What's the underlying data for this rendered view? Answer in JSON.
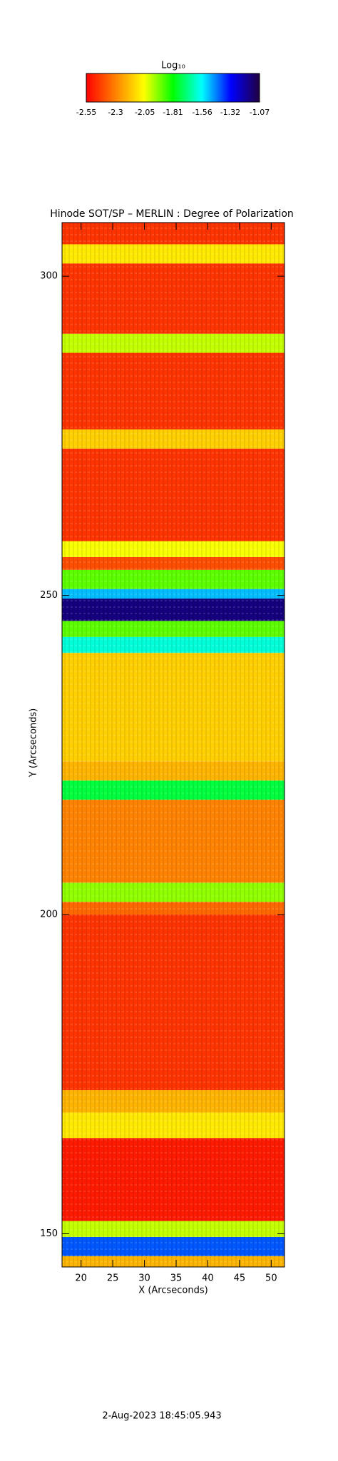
{
  "chart_data": {
    "type": "heatmap",
    "title": "Hinode SOT/SP – MERLIN : Degree of Polarization",
    "xlabel": "X (Arcseconds)",
    "ylabel": "Y (Arcseconds)",
    "footer": "2-Aug-2023 18:45:05.943",
    "colorbar_title": "Log₁₀",
    "clim": [
      -2.55,
      -1.07
    ],
    "colorbar_ticks": [
      -2.55,
      -2.3,
      -2.05,
      -1.81,
      -1.56,
      -1.32,
      -1.07
    ],
    "colormap": [
      "#ff0000",
      "#ff8000",
      "#ffff00",
      "#00ff00",
      "#00ffff",
      "#0000ff",
      "#200040"
    ],
    "xlim": [
      17.0,
      52.1
    ],
    "ylim": [
      144.8,
      308.4
    ],
    "xticks": [
      20,
      25,
      30,
      35,
      40,
      45,
      50
    ],
    "yticks": [
      150,
      200,
      250,
      300
    ],
    "y_bins": [
      144.8,
      146.5,
      149.5,
      152,
      165,
      169,
      172.5,
      200,
      202,
      205,
      218,
      221,
      224,
      241,
      243.5,
      246,
      249.5,
      251,
      254,
      256,
      258.5,
      273,
      276,
      288,
      291,
      302,
      305,
      308.4
    ],
    "values": [
      -2.2,
      -1.4,
      -2.0,
      -2.5,
      -2.1,
      -2.2,
      -2.45,
      -2.35,
      -1.95,
      -2.3,
      -1.75,
      -2.2,
      -2.15,
      -1.6,
      -1.9,
      -1.15,
      -1.5,
      -1.9,
      -2.4,
      -2.05,
      -2.45,
      -2.15,
      -2.45,
      -2.0,
      -2.45,
      -2.1,
      -2.45
    ]
  }
}
